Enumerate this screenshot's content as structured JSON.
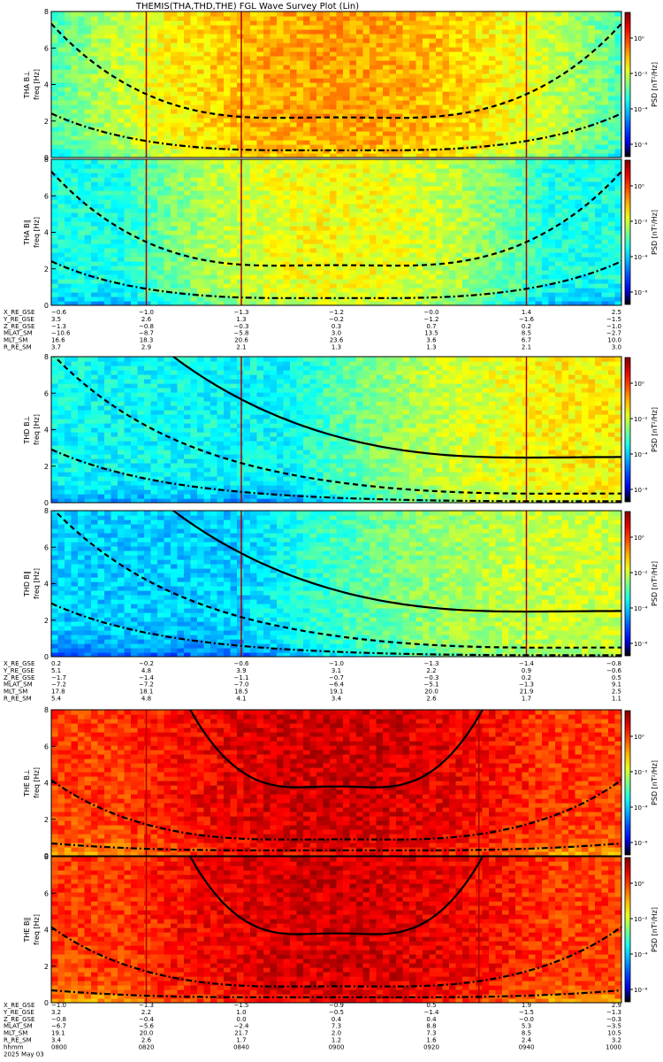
{
  "title": "THEMIS(THA,THD,THE) FGL Wave Survey Plot (Lin)",
  "colorbar": {
    "label": "PSD [nT²/Hz]",
    "ticks": [
      "10⁰",
      "10⁻²",
      "10⁻⁴",
      "10⁻⁶"
    ],
    "ticks_short": [
      "10⁰",
      "10⁻²",
      "10⁻⁴"
    ]
  },
  "panels": [
    {
      "id": "tha-bl",
      "label": "THA B⊥",
      "ylabel": "freq [Hz]"
    },
    {
      "id": "tha-bpar",
      "label": "THA B∥",
      "ylabel": "freq [Hz]"
    },
    {
      "id": "thd-bl",
      "label": "THD B⊥",
      "ylabel": "freq [Hz]"
    },
    {
      "id": "thd-bpar",
      "label": "THD B∥",
      "ylabel": "freq [Hz]"
    },
    {
      "id": "the-bl",
      "label": "THE B⊥",
      "ylabel": "freq [Hz]"
    },
    {
      "id": "the-bpar",
      "label": "THE B∥",
      "ylabel": "freq [Hz]"
    }
  ],
  "orbit_blocks": [
    {
      "rows": [
        {
          "label": "X_RE_GSE",
          "values": [
            "−0.6",
            "−1.0",
            "−1.3",
            "−1.2",
            "−0.0",
            "1.4",
            "2.5"
          ]
        },
        {
          "label": "Y_RE_GSE",
          "values": [
            "3.5",
            "2.6",
            "1.3",
            "−0.2",
            "−1.2",
            "−1.6",
            "−1.5"
          ]
        },
        {
          "label": "Z_RE_GSE",
          "values": [
            "−1.3",
            "−0.8",
            "−0.3",
            "0.3",
            "0.7",
            "0.2",
            "−1.0"
          ]
        },
        {
          "label": "MLAT_SM",
          "values": [
            "−10.6",
            "−8.7",
            "−5.8",
            "3.0",
            "13.5",
            "8.5",
            "−2.7"
          ]
        },
        {
          "label": "MLT_SM",
          "values": [
            "16.6",
            "18.3",
            "20.6",
            "23.6",
            "3.6",
            "6.7",
            "10.0"
          ]
        },
        {
          "label": "R_RE_SM",
          "values": [
            "3.7",
            "2.9",
            "2.1",
            "1.3",
            "1.3",
            "2.1",
            "3.0"
          ]
        }
      ]
    },
    {
      "rows": [
        {
          "label": "X_RE_GSE",
          "values": [
            "0.2",
            "−0.2",
            "−0.6",
            "−1.0",
            "−1.3",
            "−1.4",
            "−0.8"
          ]
        },
        {
          "label": "Y_RE_GSE",
          "values": [
            "5.1",
            "4.8",
            "3.9",
            "3.1",
            "2.2",
            "0.9",
            "−0.6"
          ]
        },
        {
          "label": "Z_RE_GSE",
          "values": [
            "−1.7",
            "−1.4",
            "−1.1",
            "−0.7",
            "−0.3",
            "0.2",
            "0.5"
          ]
        },
        {
          "label": "MLAT_SM",
          "values": [
            "−7.2",
            "−7.2",
            "−7.0",
            "−6.4",
            "−5.1",
            "−1.3",
            "9.1"
          ]
        },
        {
          "label": "MLT_SM",
          "values": [
            "17.8",
            "18.1",
            "18.5",
            "19.1",
            "20.0",
            "21.9",
            "2.5"
          ]
        },
        {
          "label": "R_RE_SM",
          "values": [
            "5.4",
            "4.8",
            "4.1",
            "3.4",
            "2.6",
            "1.7",
            "1.1"
          ]
        }
      ]
    },
    {
      "rows": [
        {
          "label": "X_RE_GSE",
          "values": [
            "−1.0",
            "−1.3",
            "−1.5",
            "−0.9",
            "0.5",
            "1.9",
            "2.9"
          ]
        },
        {
          "label": "Y_RE_GSE",
          "values": [
            "3.2",
            "2.2",
            "1.0",
            "−0.5",
            "−1.4",
            "−1.5",
            "−1.3"
          ]
        },
        {
          "label": "Z_RE_GSE",
          "values": [
            "−0.8",
            "−0.4",
            "0.0",
            "0.4",
            "0.4",
            "−0.0",
            "−0.3"
          ]
        },
        {
          "label": "MLAT_SM",
          "values": [
            "−6.7",
            "−5.6",
            "−2.4",
            "7.3",
            "8.8",
            "5.3",
            "−3.5"
          ]
        },
        {
          "label": "MLT_SM",
          "values": [
            "19.1",
            "20.0",
            "21.7",
            "2.0",
            "7.3",
            "8.5",
            "10.5"
          ]
        },
        {
          "label": "R_RE_SM",
          "values": [
            "3.4",
            "2.6",
            "1.7",
            "1.2",
            "1.6",
            "2.4",
            "3.2"
          ]
        },
        {
          "label": "hhmm",
          "values": [
            "0800",
            "0820",
            "0840",
            "0900",
            "0920",
            "0940",
            "1000"
          ]
        },
        {
          "label": "2025 May 03",
          "values": []
        }
      ]
    }
  ],
  "chart_data": {
    "type": "heatmap",
    "title": "THEMIS(THA,THD,THE) FGL Wave Survey Plot (Lin)",
    "x_range_hhmm": [
      "0800",
      "1000"
    ],
    "x_ticks_hhmm": [
      "0800",
      "0820",
      "0840",
      "0900",
      "0920",
      "0940",
      "1000"
    ],
    "date": "2025 May 03",
    "y_range_hz": [
      0,
      8
    ],
    "y_ticks": [
      "0",
      "2",
      "4",
      "6",
      "8"
    ],
    "colorscale": "rainbow (blue low → red high)",
    "z_range_log10": [
      -6,
      1
    ],
    "z_label": "PSD [nT²/Hz]",
    "panels": [
      {
        "name": "THA B⊥",
        "probe": "THA",
        "component": "perp",
        "bright_center_minutes": 60,
        "bright_halfwidth_minutes": 60,
        "base_level": 0.45,
        "peak_level": 0.72,
        "markers_minutes": [
          20,
          40,
          100
        ],
        "curves": [
          {
            "style": "dashed",
            "f0_hz": 2.2,
            "center_minutes": 60,
            "width_minutes": 25
          },
          {
            "style": "dashdot",
            "f0_hz": 0.4,
            "center_minutes": 60,
            "width_minutes": 20
          }
        ]
      },
      {
        "name": "THA B∥",
        "probe": "THA",
        "component": "par",
        "bright_center_minutes": 60,
        "bright_halfwidth_minutes": 45,
        "base_level": 0.4,
        "peak_level": 0.62,
        "markers_minutes": [
          20,
          40,
          100
        ],
        "curves": [
          {
            "style": "dashed",
            "f0_hz": 2.2,
            "center_minutes": 60,
            "width_minutes": 25
          },
          {
            "style": "dashdot",
            "f0_hz": 0.4,
            "center_minutes": 60,
            "width_minutes": 20
          }
        ]
      },
      {
        "name": "THD B⊥",
        "probe": "THD",
        "component": "perp",
        "bright_center_minutes": 120,
        "bright_halfwidth_minutes": 70,
        "base_level": 0.38,
        "peak_level": 0.64,
        "markers_minutes": [
          40,
          100
        ],
        "curves": [
          {
            "style": "solid",
            "f0_hz": 2.5,
            "center_minutes": 120,
            "width_minutes": 40
          },
          {
            "style": "dashed",
            "f0_hz": 0.5,
            "center_minutes": 120,
            "width_minutes": 30
          },
          {
            "style": "dashdot",
            "f0_hz": 0.08,
            "center_minutes": 120,
            "width_minutes": 25
          }
        ]
      },
      {
        "name": "THD B∥",
        "probe": "THD",
        "component": "par",
        "bright_center_minutes": 120,
        "bright_halfwidth_minutes": 80,
        "base_level": 0.33,
        "peak_level": 0.58,
        "markers_minutes": [
          40,
          100
        ],
        "curves": [
          {
            "style": "solid",
            "f0_hz": 2.5,
            "center_minutes": 120,
            "width_minutes": 40
          },
          {
            "style": "dashed",
            "f0_hz": 0.5,
            "center_minutes": 120,
            "width_minutes": 30
          },
          {
            "style": "dashdot",
            "f0_hz": 0.08,
            "center_minutes": 120,
            "width_minutes": 25
          }
        ]
      },
      {
        "name": "THE B⊥",
        "probe": "THE",
        "component": "perp",
        "bright_center_minutes": 60,
        "bright_halfwidth_minutes": 45,
        "base_level": 0.82,
        "peak_level": 0.92,
        "markers_minutes": [
          20,
          90
        ],
        "curves": [
          {
            "style": "solid",
            "f0_hz": 3.8,
            "center_minutes": 60,
            "width_minutes": 16
          },
          {
            "style": "dashdot",
            "f0_hz": 0.9,
            "center_minutes": 60,
            "width_minutes": 22
          },
          {
            "style": "dashdot",
            "f0_hz": 0.3,
            "center_minutes": 60,
            "width_minutes": 30
          }
        ]
      },
      {
        "name": "THE B∥",
        "probe": "THE",
        "component": "par",
        "bright_center_minutes": 60,
        "bright_halfwidth_minutes": 45,
        "base_level": 0.82,
        "peak_level": 0.92,
        "markers_minutes": [
          20,
          90
        ],
        "curves": [
          {
            "style": "solid",
            "f0_hz": 3.8,
            "center_minutes": 60,
            "width_minutes": 16
          },
          {
            "style": "dashdot",
            "f0_hz": 0.9,
            "center_minutes": 60,
            "width_minutes": 22
          },
          {
            "style": "dashdot",
            "f0_hz": 0.3,
            "center_minutes": 60,
            "width_minutes": 30
          }
        ]
      }
    ]
  }
}
